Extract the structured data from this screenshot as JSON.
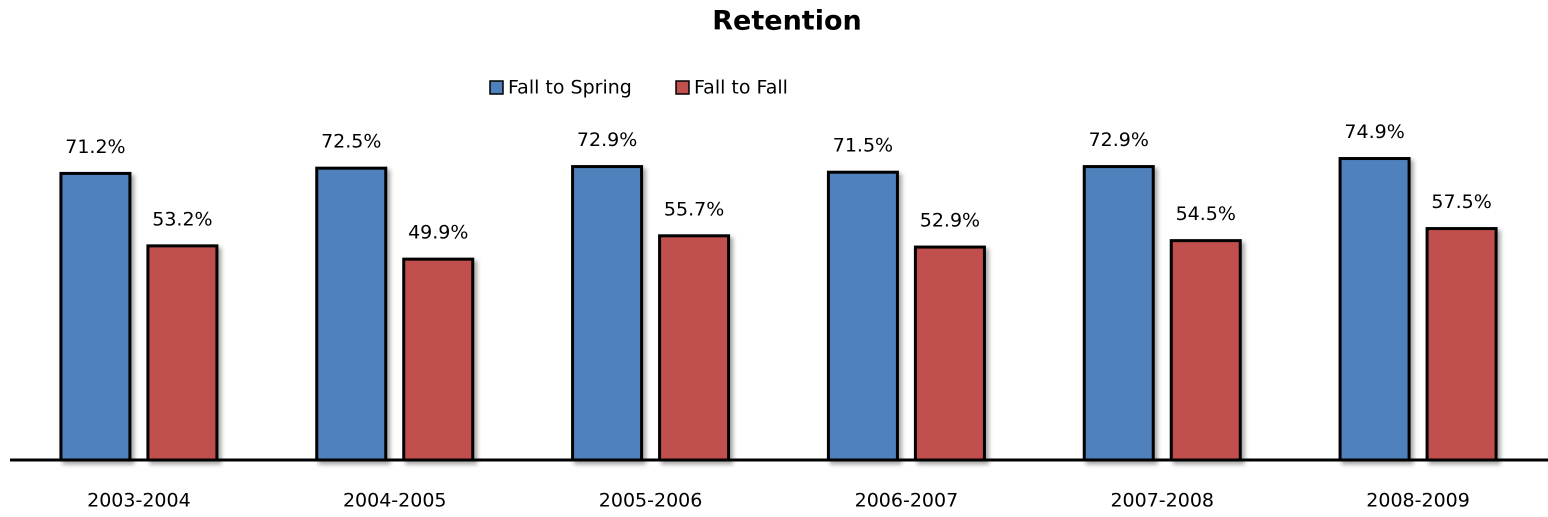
{
  "chart_data": {
    "type": "bar",
    "title": "Retention",
    "categories": [
      "2003-2004",
      "2004-2005",
      "2005-2006",
      "2006-2007",
      "2007-2008",
      "2008-2009"
    ],
    "series": [
      {
        "name": "Fall to Spring",
        "color": "#4f81bd",
        "values": [
          71.2,
          72.5,
          72.9,
          71.5,
          72.9,
          74.9
        ],
        "value_labels": [
          "71.2%",
          "72.5%",
          "72.9%",
          "71.5%",
          "72.9%",
          "74.9%"
        ]
      },
      {
        "name": "Fall to Fall",
        "color": "#c0504d",
        "values": [
          53.2,
          49.9,
          55.7,
          52.9,
          54.5,
          57.5
        ],
        "value_labels": [
          "53.2%",
          "49.9%",
          "55.7%",
          "52.9%",
          "54.5%",
          "57.5%"
        ]
      }
    ],
    "ylim": [
      0,
      80
    ],
    "legend": "top"
  }
}
